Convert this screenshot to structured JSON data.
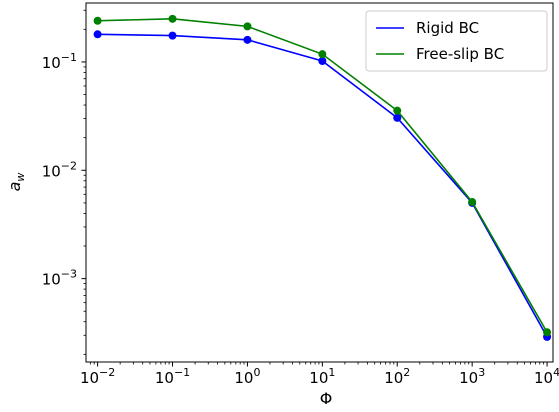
{
  "chart_data": {
    "type": "line",
    "title": "",
    "xlabel": "Φ",
    "ylabel": "a_w",
    "xscale": "log",
    "yscale": "log",
    "xlim": [
      0.007,
      12000
    ],
    "ylim": [
      0.00017,
      0.35
    ],
    "grid": false,
    "legend_position": "top-right",
    "x": [
      0.01,
      0.1,
      1,
      10,
      100,
      1000,
      10000
    ],
    "x_ticks": [
      {
        "value": 0.01,
        "base": "10",
        "exp": "−2"
      },
      {
        "value": 0.1,
        "base": "10",
        "exp": "−1"
      },
      {
        "value": 1,
        "base": "10",
        "exp": "0"
      },
      {
        "value": 10,
        "base": "10",
        "exp": "1"
      },
      {
        "value": 100,
        "base": "10",
        "exp": "2"
      },
      {
        "value": 1000,
        "base": "10",
        "exp": "3"
      },
      {
        "value": 10000,
        "base": "10",
        "exp": "4"
      }
    ],
    "y_ticks": [
      {
        "value": 0.001,
        "base": "10",
        "exp": "−3"
      },
      {
        "value": 0.01,
        "base": "10",
        "exp": "−2"
      },
      {
        "value": 0.1,
        "base": "10",
        "exp": "−1"
      }
    ],
    "series": [
      {
        "name": "Rigid BC",
        "color": "#0000ff",
        "values": [
          0.18,
          0.175,
          0.16,
          0.102,
          0.0305,
          0.005,
          0.00029
        ]
      },
      {
        "name": "Free-slip BC",
        "color": "#008000",
        "values": [
          0.24,
          0.25,
          0.213,
          0.118,
          0.0355,
          0.0051,
          0.00032
        ]
      }
    ]
  }
}
